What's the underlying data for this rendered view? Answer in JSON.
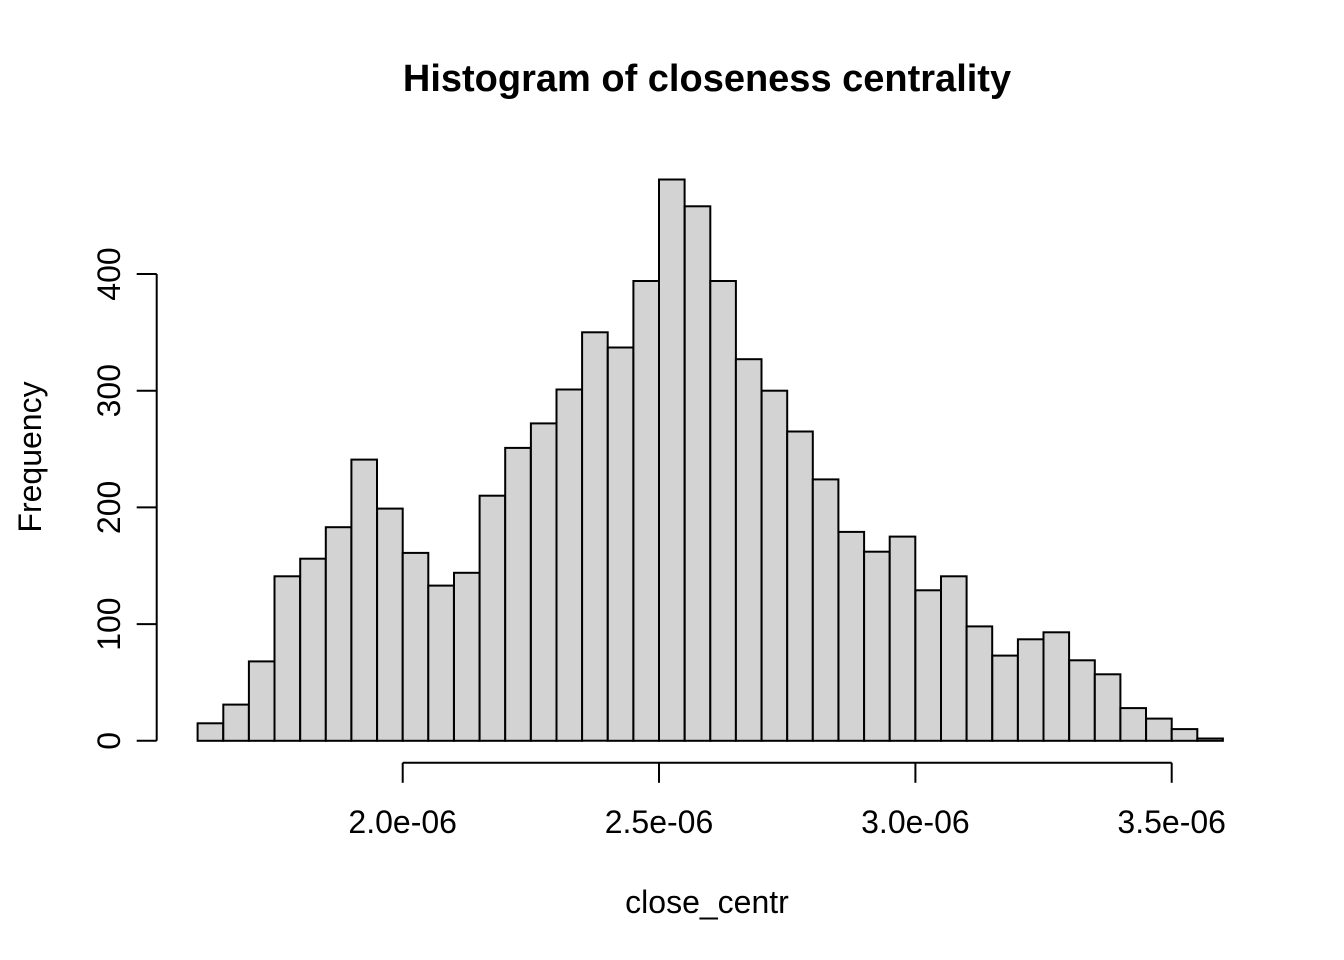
{
  "chart_data": {
    "type": "bar",
    "subtype": "histogram",
    "title": "Histogram of closeness centrality",
    "xlabel": "close_centr",
    "ylabel": "Frequency",
    "bin_start": 1.6e-06,
    "bin_width": 5e-08,
    "values": [
      15,
      31,
      68,
      141,
      156,
      183,
      241,
      199,
      161,
      133,
      144,
      210,
      251,
      272,
      301,
      350,
      337,
      394,
      481,
      458,
      394,
      327,
      300,
      265,
      224,
      179,
      162,
      175,
      129,
      141,
      98,
      73,
      87,
      93,
      69,
      57,
      28,
      19,
      10,
      2
    ],
    "x_ticks": [
      {
        "value": 2e-06,
        "label": "2.0e-06"
      },
      {
        "value": 2.5e-06,
        "label": "2.5e-06"
      },
      {
        "value": 3e-06,
        "label": "3.0e-06"
      },
      {
        "value": 3.5e-06,
        "label": "3.5e-06"
      }
    ],
    "y_ticks": [
      {
        "value": 0,
        "label": "0"
      },
      {
        "value": 100,
        "label": "100"
      },
      {
        "value": 200,
        "label": "200"
      },
      {
        "value": 300,
        "label": "300"
      },
      {
        "value": 400,
        "label": "400"
      }
    ],
    "xlim": [
      1.6e-06,
      3.6e-06
    ],
    "ylim": [
      0,
      481
    ],
    "grid": false,
    "legend": "none",
    "style": {
      "bar_fill": "#d3d3d3",
      "bar_stroke": "#000000",
      "axis_color": "#000000",
      "background": "#ffffff",
      "text_color": "#000000"
    }
  }
}
